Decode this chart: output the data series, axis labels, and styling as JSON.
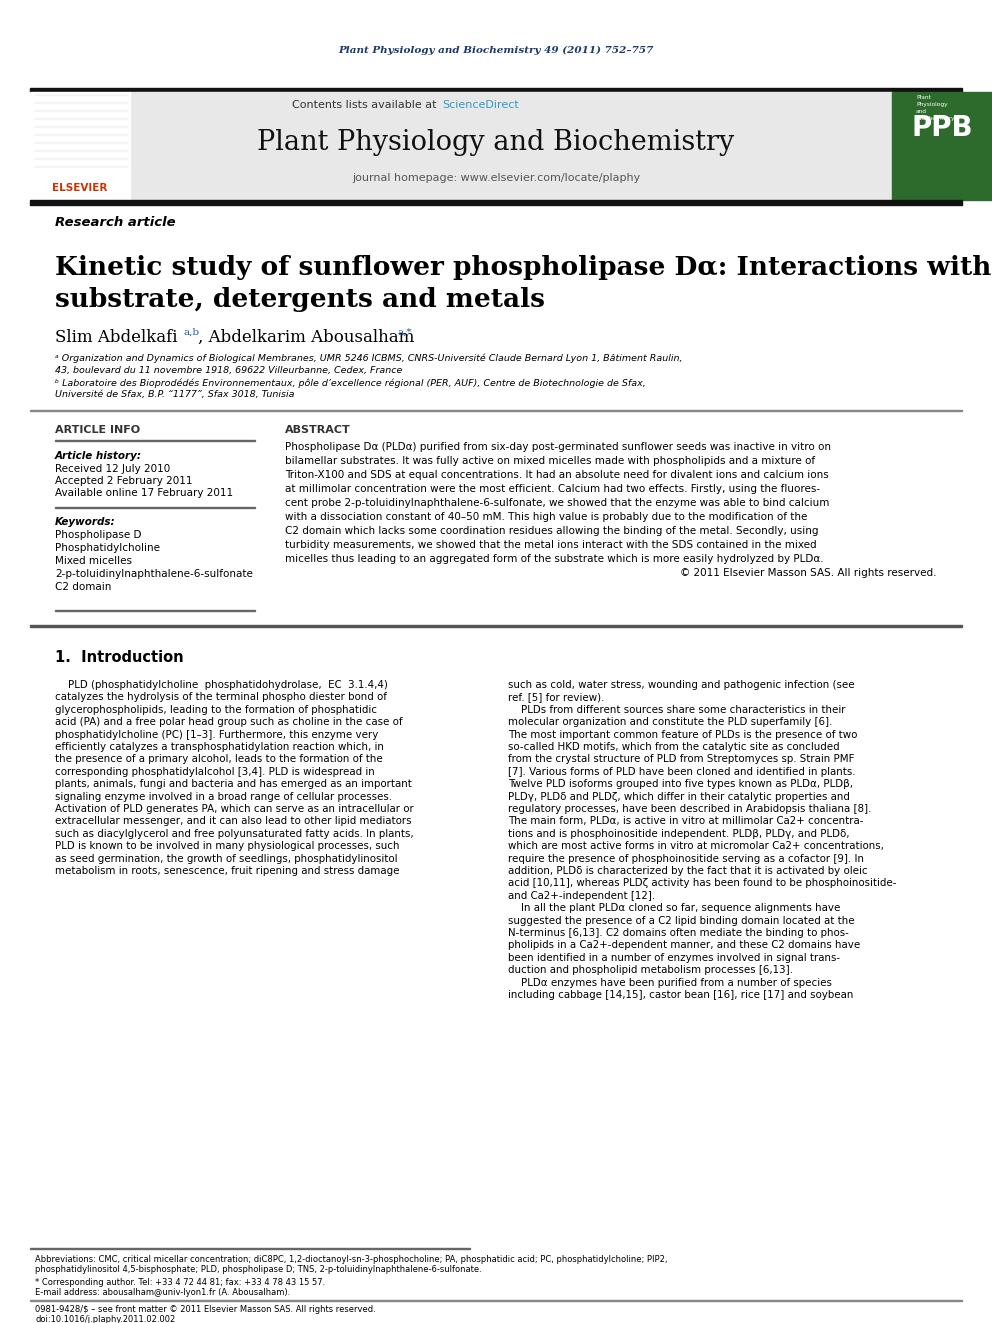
{
  "journal_citation": "Plant Physiology and Biochemistry 49 (2011) 752–757",
  "journal_title": "Plant Physiology and Biochemistry",
  "journal_homepage": "journal homepage: www.elsevier.com/locate/plaphy",
  "article_type": "Research article",
  "paper_title_line1": "Kinetic study of sunflower phospholipase Dα: Interactions with micellar",
  "paper_title_line2": "substrate, detergents and metals",
  "affil_a": "ᵃ Organization and Dynamics of Biological Membranes, UMR 5246 ICBMS, CNRS-Université Claude Bernard Lyon 1, Bâtiment Raulin,",
  "affil_a2": "43, boulevard du 11 novembre 1918, 69622 Villeurbanne, Cedex, France",
  "affil_b": "ᵇ Laboratoire des Bioprodédés Environnementaux, pôle d’excellence régional (PER, AUF), Centre de Biotechnologie de Sfax,",
  "affil_b2": "Université de Sfax, B.P. “1177”, Sfax 3018, Tunisia",
  "article_history_label": "Article history:",
  "received": "Received 12 July 2010",
  "accepted": "Accepted 2 February 2011",
  "available": "Available online 17 February 2011",
  "keywords_label": "Keywords:",
  "keywords": [
    "Phospholipase D",
    "Phosphatidylcholine",
    "Mixed micelles",
    "2-p-toluidinylnaphthalene-6-sulfonate",
    "C2 domain"
  ],
  "section1_title": "1.  Introduction",
  "footnote_abbrev1": "Abbreviations: CMC, critical micellar concentration; diC8PC, 1,2-dioctanoyl-sn-3-phosphocholine; PA, phosphatidic acid; PC, phosphatidylcholine; PIP2,",
  "footnote_abbrev2": "phosphatidylinositol 4,5-bisphosphate; PLD, phospholipase D; TNS, 2-p-toluidinylnaphthalene-6-sulfonate.",
  "footnote_corresp": "* Corresponding author. Tel: +33 4 72 44 81; fax: +33 4 78 43 15 57.",
  "footnote_email": "E-mail address: abousalham@univ-lyon1.fr (A. Abousalham).",
  "footnote_issn": "0981-9428/$ – see front matter © 2011 Elsevier Masson SAS. All rights reserved.",
  "footnote_doi": "doi:10.1016/j.plaphy.2011.02.002",
  "bg_color": "#ffffff",
  "header_bg": "#e8e8e8",
  "citation_color": "#1a3a6e",
  "sciencedirect_color": "#3399cc",
  "elsevier_red": "#cc3300",
  "ppb_green": "#2d6b2d",
  "abs_lines": [
    "Phospholipase Dα (PLDα) purified from six-day post-germinated sunflower seeds was inactive in vitro on",
    "bilamellar substrates. It was fully active on mixed micelles made with phospholipids and a mixture of",
    "Triton-X100 and SDS at equal concentrations. It had an absolute need for divalent ions and calcium ions",
    "at millimolar concentration were the most efficient. Calcium had two effects. Firstly, using the fluores-",
    "cent probe 2-p-toluidinylnaphthalene-6-sulfonate, we showed that the enzyme was able to bind calcium",
    "with a dissociation constant of 40–50 mM. This high value is probably due to the modification of the",
    "C2 domain which lacks some coordination residues allowing the binding of the metal. Secondly, using",
    "turbidity measurements, we showed that the metal ions interact with the SDS contained in the mixed",
    "micelles thus leading to an aggregated form of the substrate which is more easily hydrolyzed by PLDα.",
    "© 2011 Elsevier Masson SAS. All rights reserved."
  ],
  "col1_lines": [
    "    PLD (phosphatidylcholine  phosphatidohydrolase,  EC  3.1.4,4)",
    "catalyzes the hydrolysis of the terminal phospho diester bond of",
    "glycerophospholipids, leading to the formation of phosphatidic",
    "acid (PA) and a free polar head group such as choline in the case of",
    "phosphatidylcholine (PC) [1–3]. Furthermore, this enzyme very",
    "efficiently catalyzes a transphosphatidylation reaction which, in",
    "the presence of a primary alcohol, leads to the formation of the",
    "corresponding phosphatidylalcohol [3,4]. PLD is widespread in",
    "plants, animals, fungi and bacteria and has emerged as an important",
    "signaling enzyme involved in a broad range of cellular processes.",
    "Activation of PLD generates PA, which can serve as an intracellular or",
    "extracellular messenger, and it can also lead to other lipid mediators",
    "such as diacylglycerol and free polyunsaturated fatty acids. In plants,",
    "PLD is known to be involved in many physiological processes, such",
    "as seed germination, the growth of seedlings, phosphatidylinositol",
    "metabolism in roots, senescence, fruit ripening and stress damage"
  ],
  "col2_lines": [
    "such as cold, water stress, wounding and pathogenic infection (see",
    "ref. [5] for review).",
    "    PLDs from different sources share some characteristics in their",
    "molecular organization and constitute the PLD superfamily [6].",
    "The most important common feature of PLDs is the presence of two",
    "so-called HKD motifs, which from the catalytic site as concluded",
    "from the crystal structure of PLD from Streptomyces sp. Strain PMF",
    "[7]. Various forms of PLD have been cloned and identified in plants.",
    "Twelve PLD isoforms grouped into five types known as PLDα, PLDβ,",
    "PLDγ, PLDδ and PLDζ, which differ in their catalytic properties and",
    "regulatory processes, have been described in Arabidopsis thaliana [8].",
    "The main form, PLDα, is active in vitro at millimolar Ca2+ concentra-",
    "tions and is phosphoinositide independent. PLDβ, PLDγ, and PLDδ,",
    "which are most active forms in vitro at micromolar Ca2+ concentrations,",
    "require the presence of phosphoinositide serving as a cofactor [9]. In",
    "addition, PLDδ is characterized by the fact that it is activated by oleic",
    "acid [10,11], whereas PLDζ activity has been found to be phosphoinositide-",
    "and Ca2+-independent [12].",
    "    In all the plant PLDα cloned so far, sequence alignments have",
    "suggested the presence of a C2 lipid binding domain located at the",
    "N-terminus [6,13]. C2 domains often mediate the binding to phos-",
    "pholipids in a Ca2+-dependent manner, and these C2 domains have",
    "been identified in a number of enzymes involved in signal trans-",
    "duction and phospholipid metabolism processes [6,13].",
    "    PLDα enzymes have been purified from a number of species",
    "including cabbage [14,15], castor bean [16], rice [17] and soybean"
  ]
}
